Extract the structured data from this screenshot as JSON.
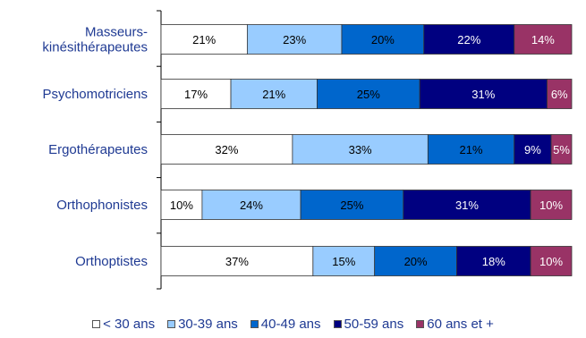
{
  "chart_data": {
    "type": "bar",
    "orientation": "horizontal",
    "stacked": true,
    "normalized_percent": true,
    "categories": [
      "Masseurs-kinésithérapeutes",
      "Psychomotriciens",
      "Ergothérapeutes",
      "Orthophonistes",
      "Orthoptistes"
    ],
    "category_display": [
      [
        "Masseurs-",
        "kinésithérapeutes"
      ],
      [
        "Psychomotriciens"
      ],
      [
        "Ergothérapeutes"
      ],
      [
        "Orthophonistes"
      ],
      [
        "Orthoptistes"
      ]
    ],
    "series": [
      {
        "name": "< 30 ans",
        "color": "#ffffff",
        "text_color": "#000000",
        "values": [
          21,
          17,
          32,
          10,
          37
        ]
      },
      {
        "name": "30-39 ans",
        "color": "#99ccff",
        "text_color": "#000000",
        "values": [
          23,
          21,
          33,
          24,
          15
        ]
      },
      {
        "name": "40-49 ans",
        "color": "#0066cc",
        "text_color": "#000000",
        "values": [
          20,
          25,
          21,
          25,
          20
        ]
      },
      {
        "name": "50-59 ans",
        "color": "#000080",
        "text_color": "#ffffff",
        "values": [
          22,
          31,
          9,
          31,
          18
        ]
      },
      {
        "name": "60 ans et +",
        "color": "#993366",
        "text_color": "#ffffff",
        "values": [
          14,
          6,
          5,
          10,
          10
        ]
      }
    ],
    "labels": [
      [
        "21%",
        "23%",
        "20%",
        "22%",
        "14%"
      ],
      [
        "17%",
        "21%",
        "25%",
        "31%",
        "6%"
      ],
      [
        "32%",
        "33%",
        "21%",
        "9%",
        "5%"
      ],
      [
        "10%",
        "24%",
        "25%",
        "31%",
        "10%"
      ],
      [
        "37%",
        "15%",
        "20%",
        "18%",
        "10%"
      ]
    ],
    "xlim": [
      0,
      100
    ],
    "grid": false,
    "legend_position": "bottom"
  }
}
